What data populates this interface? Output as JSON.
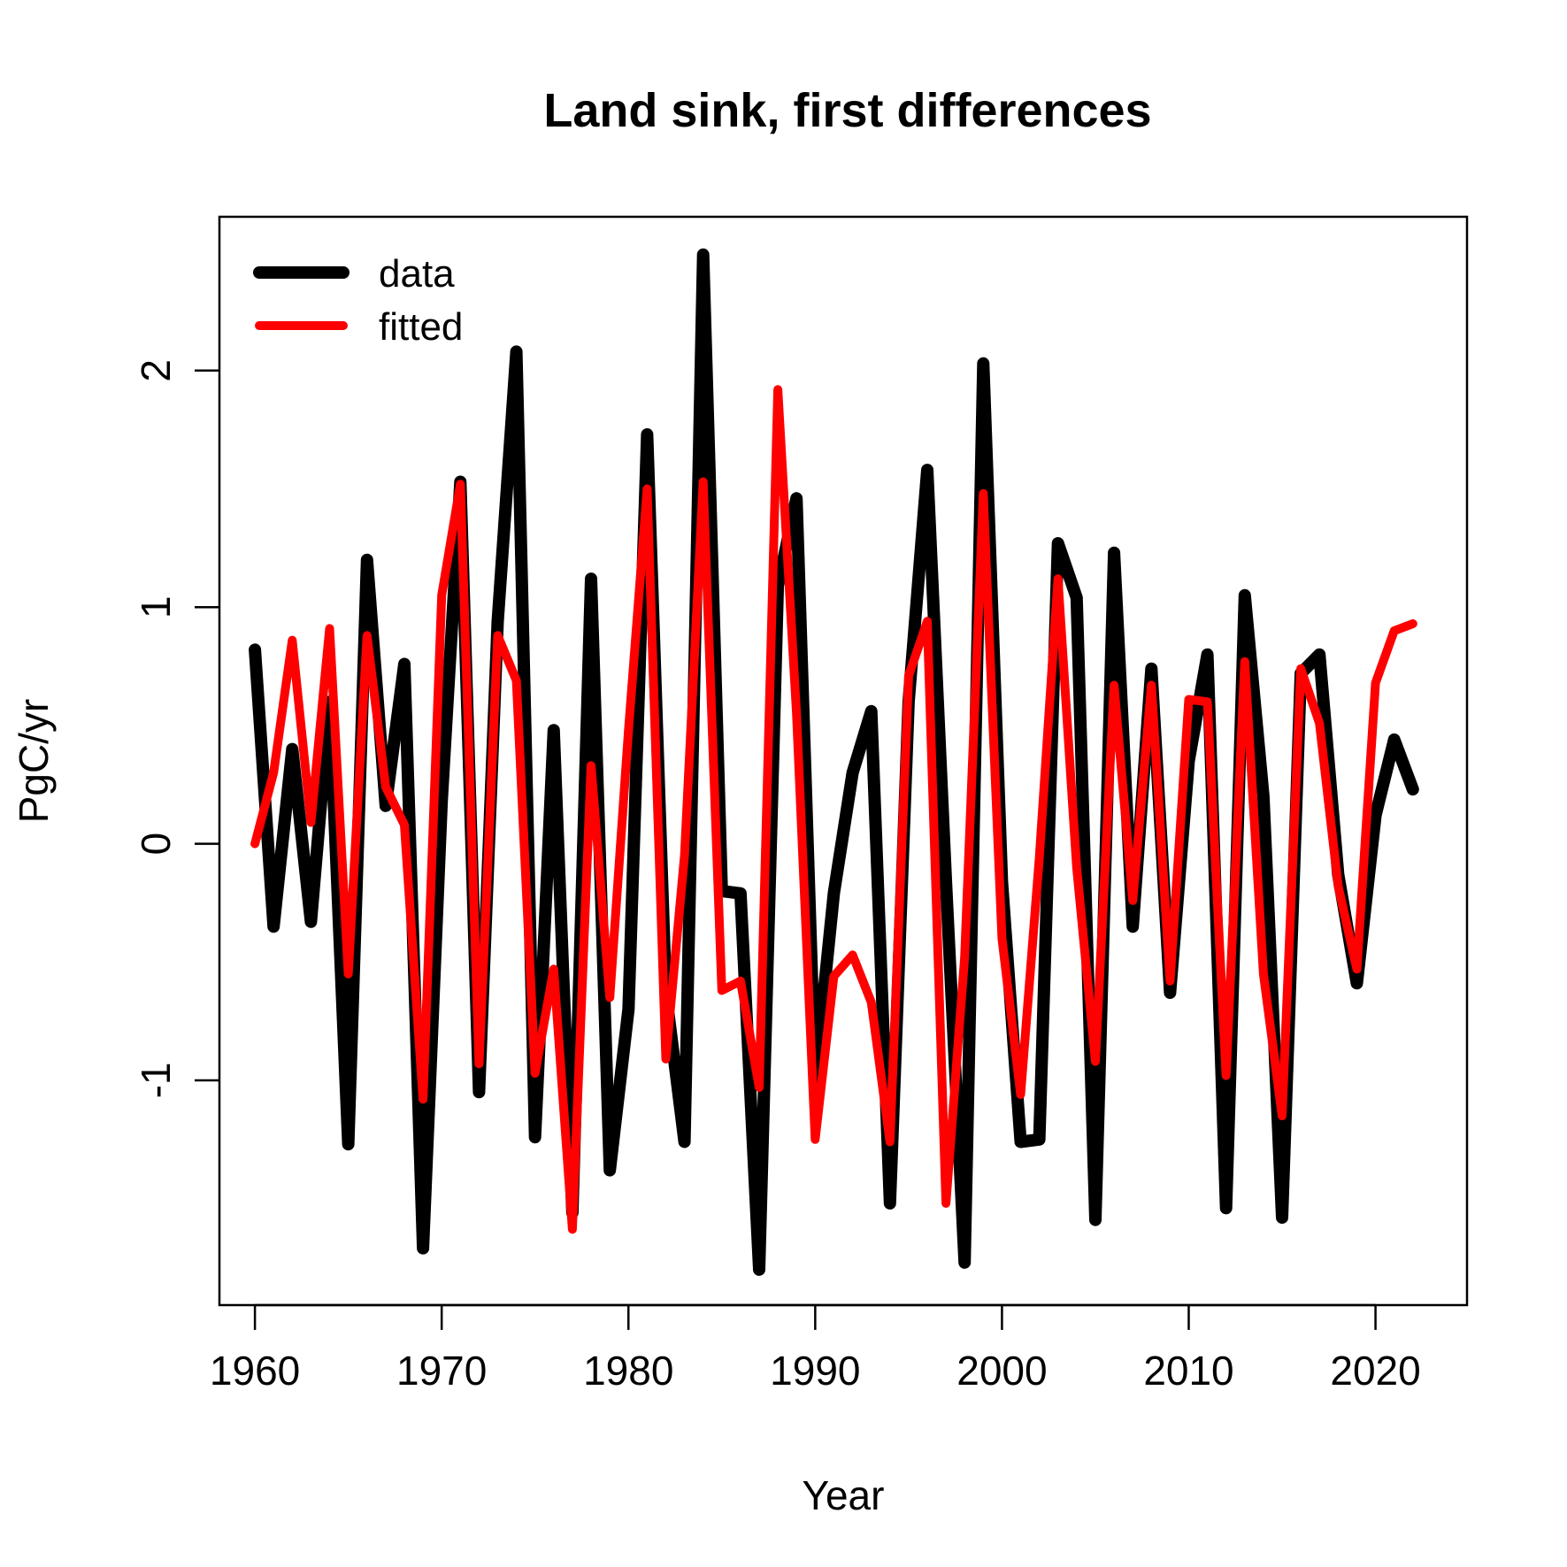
{
  "chart_data": {
    "type": "line",
    "title": "Land sink, first differences",
    "xlabel": "Year",
    "ylabel": "PgC/yr",
    "xlim": [
      1958.1,
      2024.9
    ],
    "ylim": [
      -1.95,
      2.65
    ],
    "grid": false,
    "legend_position": "top-left",
    "x_ticks": [
      1960,
      1970,
      1980,
      1990,
      2000,
      2010,
      2020
    ],
    "x_tick_labels": [
      "1960",
      "1970",
      "1980",
      "1990",
      "2000",
      "2010",
      "2020"
    ],
    "y_ticks": [
      -1,
      0,
      1,
      2
    ],
    "y_tick_labels": [
      "-1",
      "0",
      "1",
      "2"
    ],
    "x": [
      1960,
      1961,
      1962,
      1963,
      1964,
      1965,
      1966,
      1967,
      1968,
      1969,
      1970,
      1971,
      1972,
      1973,
      1974,
      1975,
      1976,
      1977,
      1978,
      1979,
      1980,
      1981,
      1982,
      1983,
      1984,
      1985,
      1986,
      1987,
      1988,
      1989,
      1990,
      1991,
      1992,
      1993,
      1994,
      1995,
      1996,
      1997,
      1998,
      1999,
      2000,
      2001,
      2002,
      2003,
      2004,
      2005,
      2006,
      2007,
      2008,
      2009,
      2010,
      2011,
      2012,
      2013,
      2014,
      2015,
      2016,
      2017,
      2018,
      2019,
      2020,
      2021,
      2022
    ],
    "series": [
      {
        "name": "data",
        "color": "#000000",
        "values": [
          0.82,
          -0.35,
          0.4,
          -0.33,
          0.6,
          -1.27,
          1.2,
          0.16,
          0.76,
          -1.71,
          0.18,
          1.53,
          -1.05,
          0.94,
          2.08,
          -1.24,
          0.48,
          -1.56,
          1.12,
          -1.38,
          -0.7,
          1.73,
          -0.63,
          -1.26,
          2.49,
          -0.2,
          -0.21,
          -1.8,
          1.09,
          1.46,
          -0.99,
          -0.21,
          0.3,
          0.56,
          -1.52,
          0.6,
          1.58,
          -0.16,
          -1.77,
          2.03,
          -0.16,
          -1.26,
          -1.25,
          1.27,
          1.04,
          -1.59,
          1.23,
          -0.35,
          0.74,
          -0.63,
          0.35,
          0.8,
          -1.54,
          1.05,
          0.2,
          -1.58,
          0.72,
          0.8,
          -0.13,
          -0.59,
          0.12,
          0.44,
          0.23
        ]
      },
      {
        "name": "fitted",
        "color": "#ff0000",
        "values": [
          0.0,
          0.3,
          0.86,
          0.09,
          0.91,
          -0.55,
          0.88,
          0.24,
          0.08,
          -1.08,
          1.05,
          1.52,
          -0.93,
          0.88,
          0.69,
          -0.97,
          -0.53,
          -1.63,
          0.33,
          -0.65,
          0.48,
          1.5,
          -0.91,
          -0.05,
          1.53,
          -0.62,
          -0.58,
          -1.03,
          1.92,
          0.55,
          -1.25,
          -0.56,
          -0.47,
          -0.67,
          -1.26,
          0.71,
          0.94,
          -1.52,
          -0.48,
          1.48,
          -0.4,
          -1.06,
          -0.06,
          1.12,
          -0.1,
          -0.92,
          0.67,
          -0.24,
          0.67,
          -0.58,
          0.61,
          0.6,
          -0.98,
          0.77,
          -0.55,
          -1.15,
          0.74,
          0.51,
          -0.18,
          -0.53,
          0.68,
          0.9,
          0.93
        ]
      }
    ]
  }
}
